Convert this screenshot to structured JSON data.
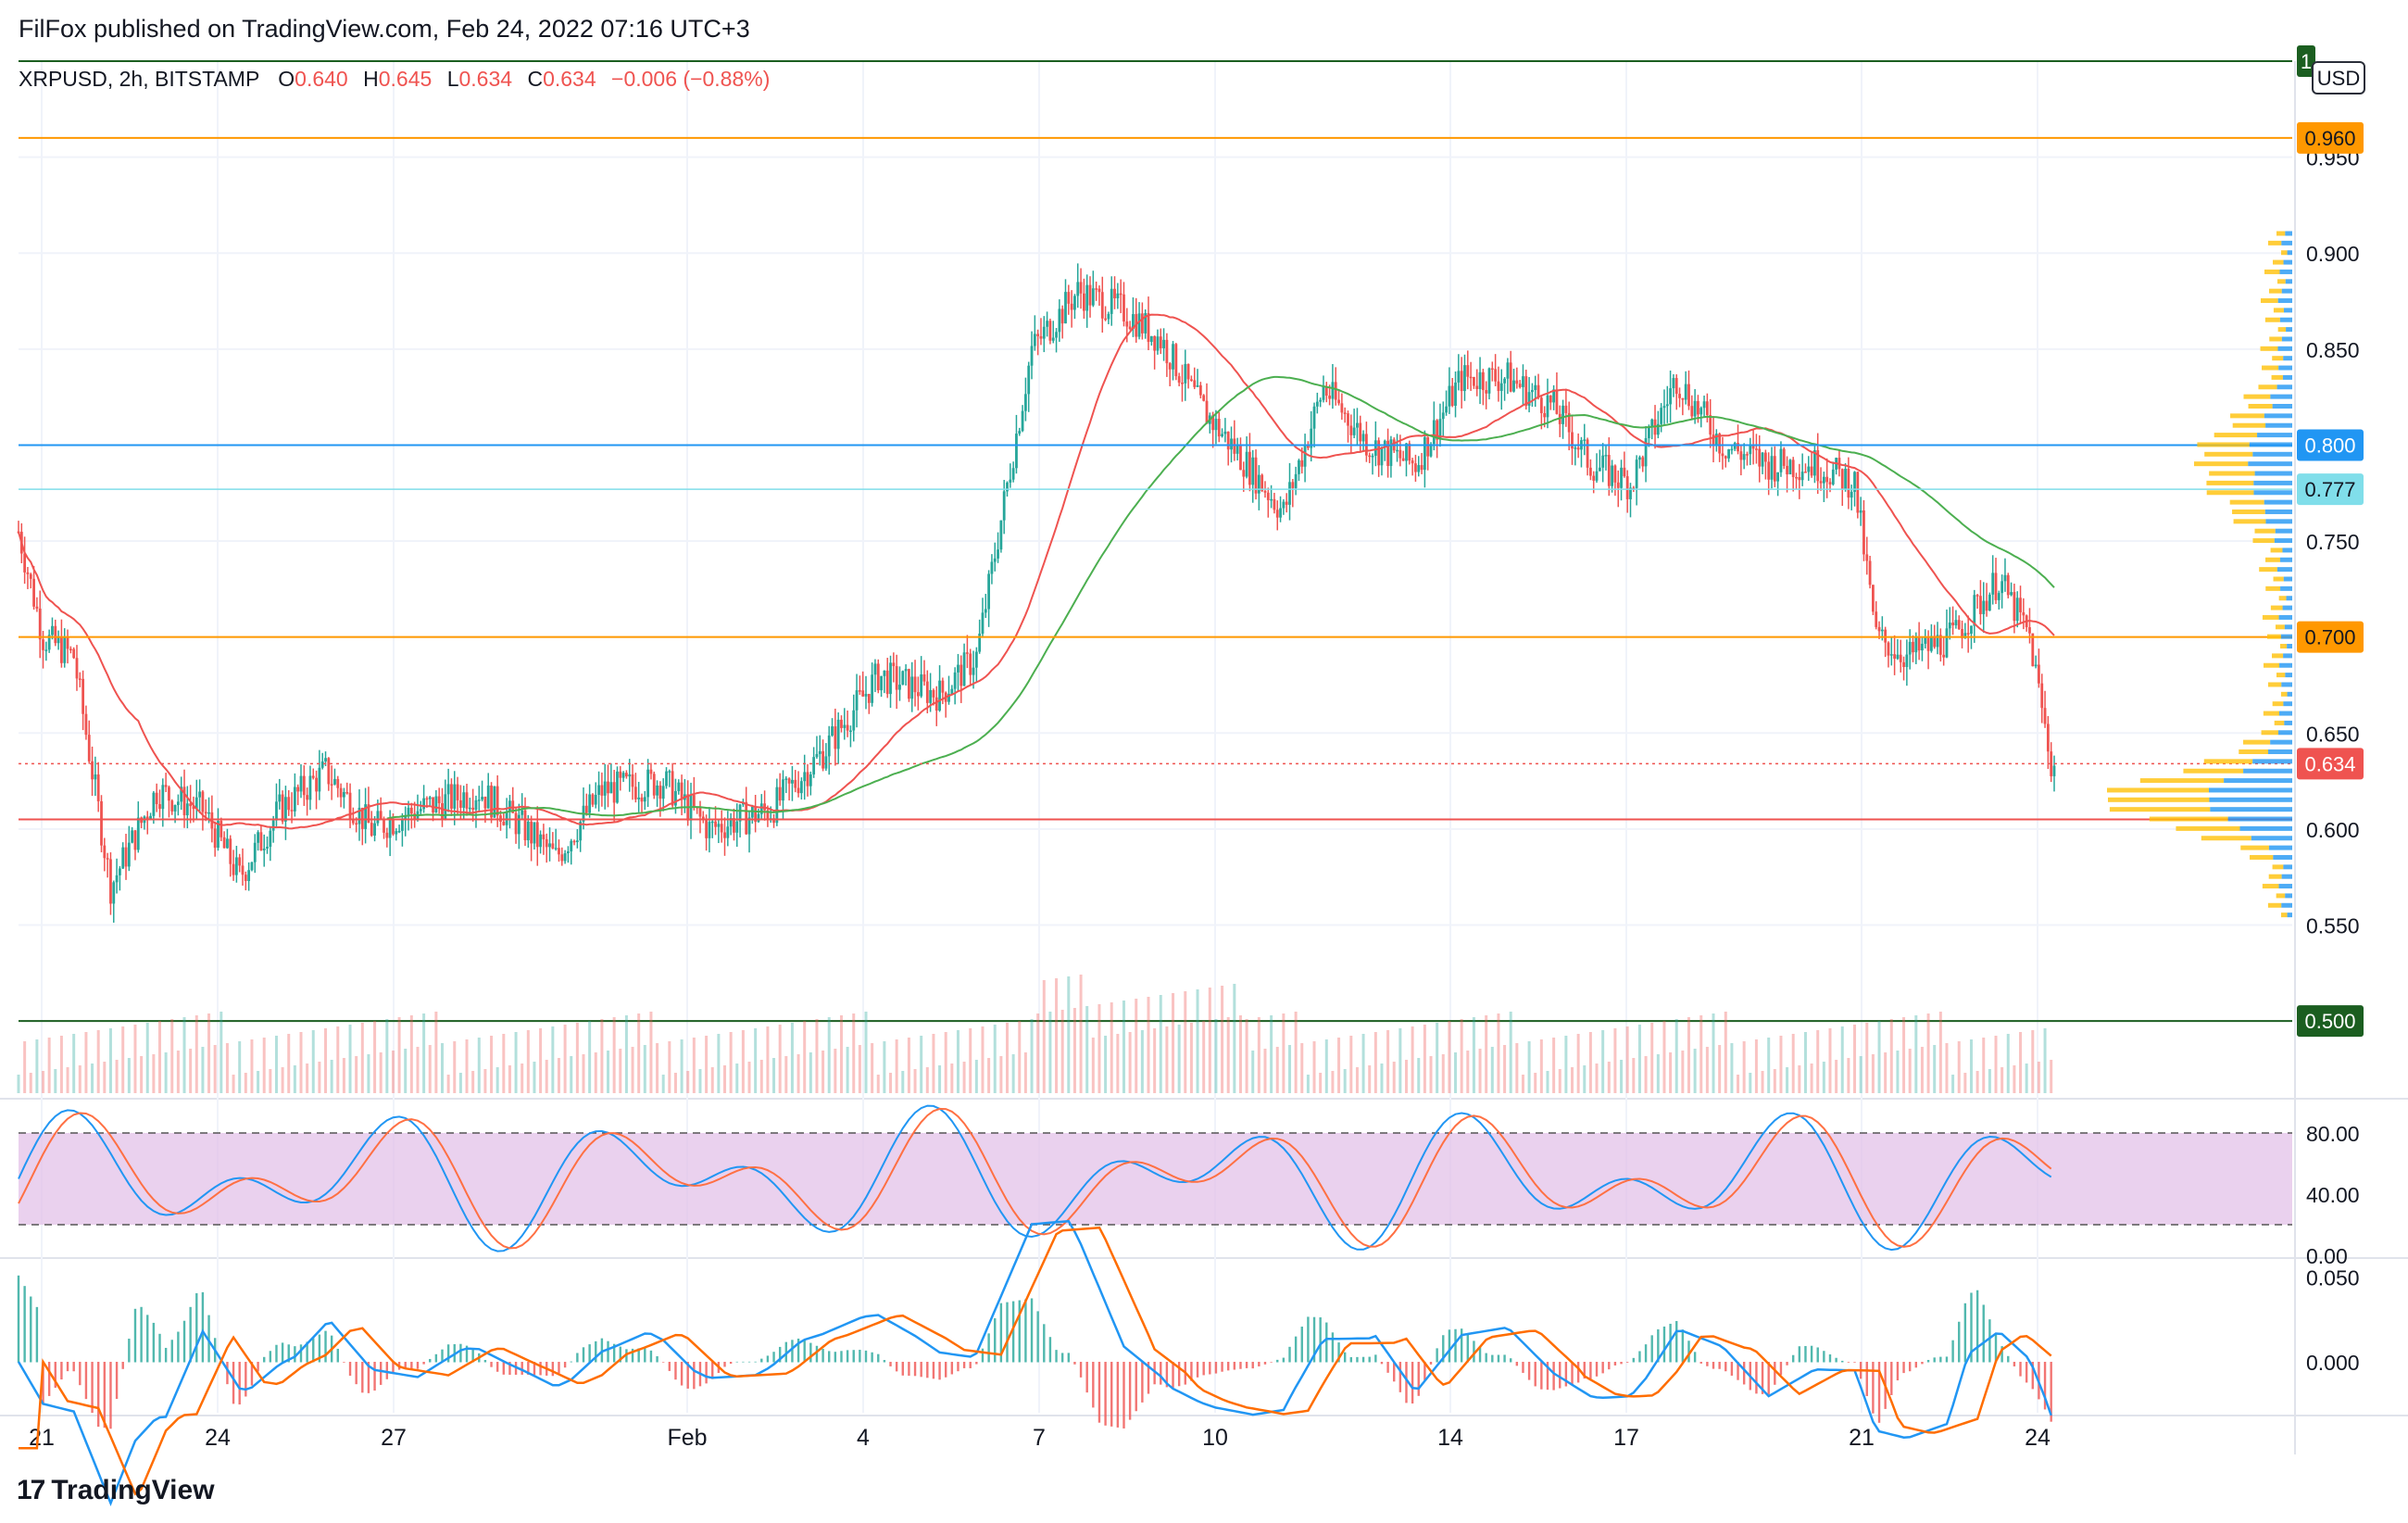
{
  "header": {
    "published_by": "FilFox published on TradingView.com, Feb 24, 2022 07:16 UTC+3"
  },
  "legend": {
    "symbol": "XRPUSD, 2h, BITSTAMP",
    "o_label": "O",
    "o_value": "0.640",
    "h_label": "H",
    "h_value": "0.645",
    "l_label": "L",
    "l_value": "0.634",
    "c_label": "C",
    "c_value": "0.634",
    "change": "−0.006 (−0.88%)"
  },
  "currency_badge": "USD",
  "footer": {
    "brand": "TradingView"
  },
  "colors": {
    "up": "#26a69a",
    "down": "#ef5350",
    "ma_red": "#ef5350",
    "ma_green": "#4caf50",
    "level_orange": "#ff9800",
    "level_blue": "#2196f3",
    "level_lightblue": "#80deea",
    "level_green": "#1b5e20",
    "stoch_band": "#e1bee7",
    "stoch_k": "#2196f3",
    "stoch_d": "#ff7043",
    "macd": "#2196f3",
    "signal": "#ff6d00"
  },
  "chart_data": {
    "type": "candlestick",
    "symbol": "XRPUSD",
    "interval": "2h",
    "exchange": "BITSTAMP",
    "x_ticks": [
      "21",
      "24",
      "27",
      "Feb",
      "4",
      "7",
      "10",
      "14",
      "17",
      "21",
      "24"
    ],
    "y_ticks": [
      "0.950",
      "0.900",
      "0.850",
      "0.800",
      "0.750",
      "0.700",
      "0.650",
      "0.600",
      "0.550"
    ],
    "ylim": [
      0.46,
      1.0
    ],
    "last_price": 0.634,
    "price_labels": [
      {
        "value": 0.96,
        "text": "0.960",
        "kind": "orange"
      },
      {
        "value": 0.8,
        "text": "0.800",
        "kind": "blue"
      },
      {
        "value": 0.777,
        "text": "0.777",
        "kind": "lightblue"
      },
      {
        "value": 0.7,
        "text": "0.700",
        "kind": "orange"
      },
      {
        "value": 0.634,
        "text": "0.634",
        "kind": "red"
      },
      {
        "value": 0.5,
        "text": "0.500",
        "kind": "green"
      }
    ],
    "top_label": "1",
    "horizontal_levels": [
      {
        "value": 1.0,
        "color": "green"
      },
      {
        "value": 0.96,
        "color": "orange"
      },
      {
        "value": 0.8,
        "color": "blue"
      },
      {
        "value": 0.777,
        "color": "lightblue"
      },
      {
        "value": 0.7,
        "color": "orange"
      },
      {
        "value": 0.605,
        "color": "red"
      },
      {
        "value": 0.5,
        "color": "green"
      }
    ],
    "close_path_keypoints": [
      [
        0,
        0.755
      ],
      [
        8,
        0.7
      ],
      [
        18,
        0.69
      ],
      [
        30,
        0.57
      ],
      [
        45,
        0.62
      ],
      [
        60,
        0.61
      ],
      [
        72,
        0.575
      ],
      [
        85,
        0.61
      ],
      [
        100,
        0.63
      ],
      [
        115,
        0.6
      ],
      [
        130,
        0.61
      ],
      [
        150,
        0.62
      ],
      [
        165,
        0.6
      ],
      [
        175,
        0.585
      ],
      [
        190,
        0.62
      ],
      [
        210,
        0.625
      ],
      [
        225,
        0.6
      ],
      [
        245,
        0.61
      ],
      [
        262,
        0.64
      ],
      [
        280,
        0.68
      ],
      [
        300,
        0.67
      ],
      [
        312,
        0.69
      ],
      [
        330,
        0.85
      ],
      [
        345,
        0.88
      ],
      [
        360,
        0.87
      ],
      [
        372,
        0.855
      ],
      [
        385,
        0.82
      ],
      [
        400,
        0.79
      ],
      [
        412,
        0.765
      ],
      [
        425,
        0.83
      ],
      [
        440,
        0.8
      ],
      [
        455,
        0.79
      ],
      [
        470,
        0.835
      ],
      [
        485,
        0.835
      ],
      [
        500,
        0.82
      ],
      [
        512,
        0.79
      ],
      [
        525,
        0.78
      ],
      [
        540,
        0.835
      ],
      [
        555,
        0.8
      ],
      [
        570,
        0.79
      ],
      [
        585,
        0.79
      ],
      [
        598,
        0.78
      ],
      [
        605,
        0.7
      ],
      [
        615,
        0.69
      ],
      [
        630,
        0.7
      ],
      [
        645,
        0.73
      ],
      [
        655,
        0.7
      ],
      [
        662,
        0.634
      ]
    ],
    "stochastic": {
      "ylim": [
        0,
        100
      ],
      "y_ticks": [
        "80.00",
        "40.00",
        "0.00"
      ],
      "upper": 80,
      "lower": 20
    },
    "macd": {
      "ylim": [
        -0.03,
        0.06
      ],
      "y_ticks": [
        "0.050",
        "0.000"
      ]
    }
  }
}
